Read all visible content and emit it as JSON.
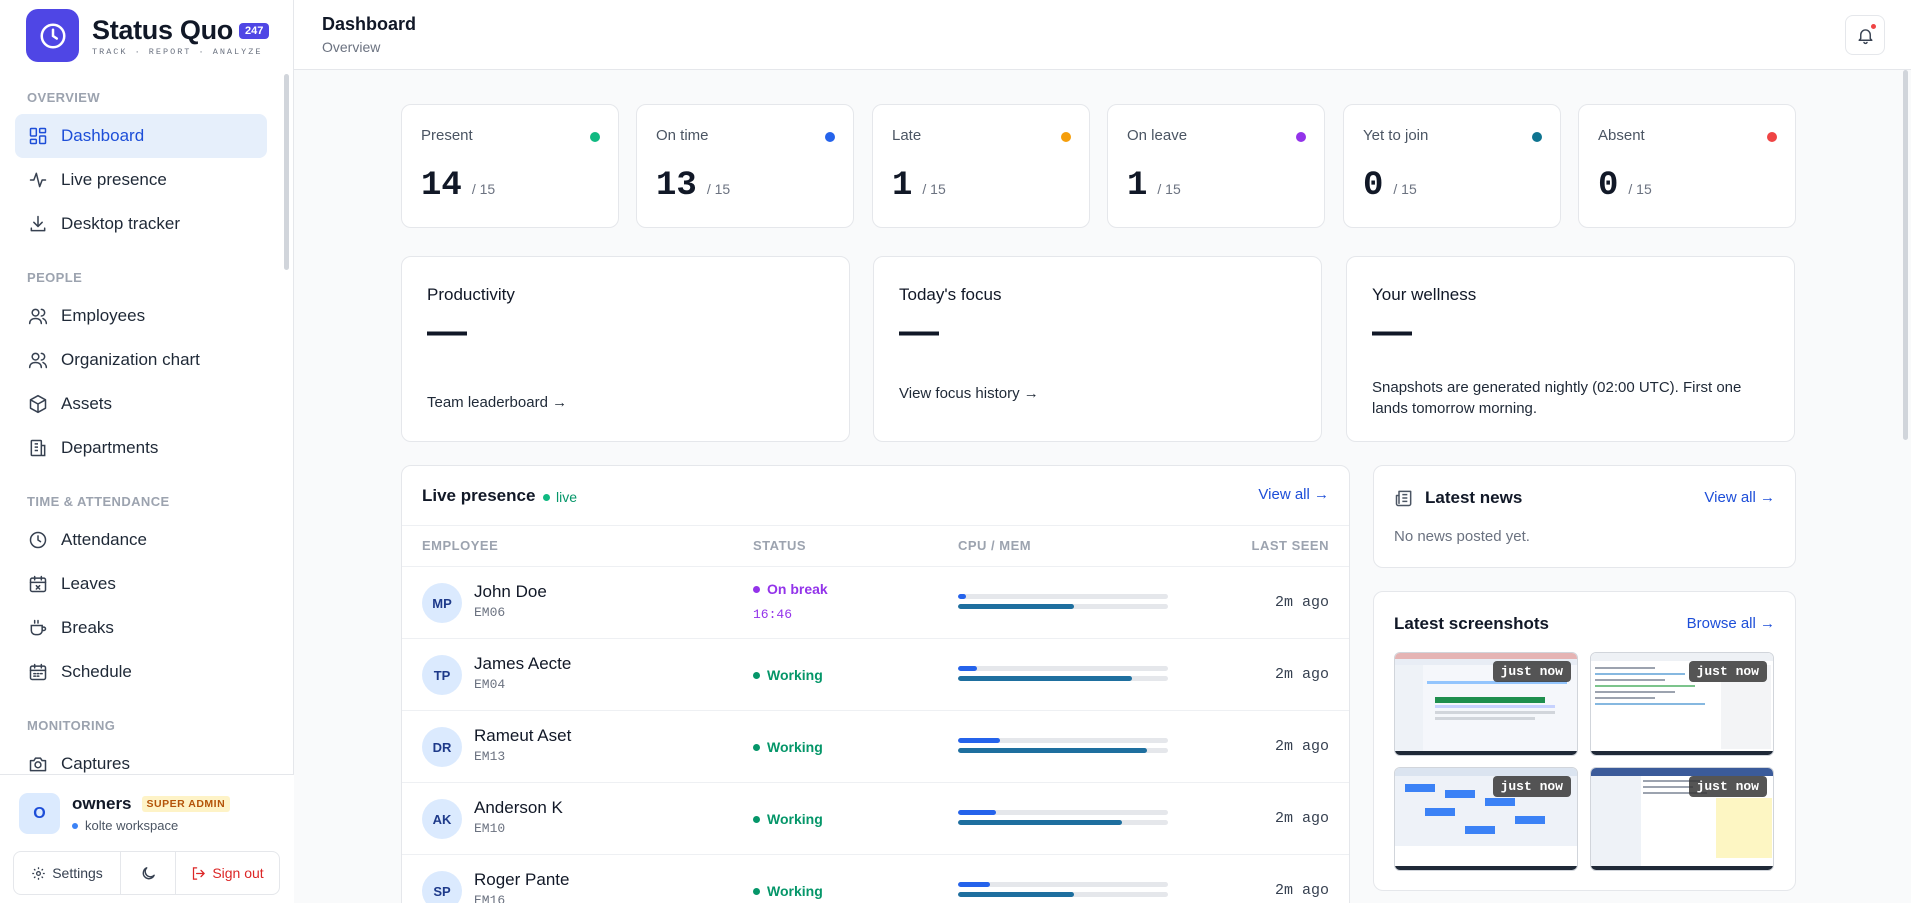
{
  "brand": {
    "name": "Status Quo",
    "badge": "247",
    "tagline": "TRACK · REPORT · ANALYZE"
  },
  "sidebar": {
    "sections": [
      {
        "label": "OVERVIEW",
        "items": [
          {
            "label": "Dashboard",
            "icon": "dashboard-icon",
            "active": true
          },
          {
            "label": "Live presence",
            "icon": "activity-icon"
          },
          {
            "label": "Desktop tracker",
            "icon": "download-icon"
          }
        ]
      },
      {
        "label": "PEOPLE",
        "items": [
          {
            "label": "Employees",
            "icon": "users-icon"
          },
          {
            "label": "Organization chart",
            "icon": "org-chart-icon"
          },
          {
            "label": "Assets",
            "icon": "box-icon"
          },
          {
            "label": "Departments",
            "icon": "building-icon"
          }
        ]
      },
      {
        "label": "TIME & ATTENDANCE",
        "items": [
          {
            "label": "Attendance",
            "icon": "clock-icon"
          },
          {
            "label": "Leaves",
            "icon": "calendar-x-icon"
          },
          {
            "label": "Breaks",
            "icon": "coffee-icon"
          },
          {
            "label": "Schedule",
            "icon": "calendar-icon"
          }
        ]
      },
      {
        "label": "MONITORING",
        "items": [
          {
            "label": "Captures",
            "icon": "camera-icon"
          }
        ]
      }
    ]
  },
  "user": {
    "initial": "O",
    "name": "owners",
    "role": "SUPER ADMIN",
    "workspace": "kolte workspace",
    "settings_label": "Settings",
    "signout_label": "Sign out"
  },
  "header": {
    "title": "Dashboard",
    "subtitle": "Overview"
  },
  "stats": [
    {
      "label": "Present",
      "value": "14",
      "total": "/ 15",
      "color": "#10b981"
    },
    {
      "label": "On time",
      "value": "13",
      "total": "/ 15",
      "color": "#2563eb"
    },
    {
      "label": "Late",
      "value": "1",
      "total": "/ 15",
      "color": "#f59e0b"
    },
    {
      "label": "On leave",
      "value": "1",
      "total": "/ 15",
      "color": "#9333ea"
    },
    {
      "label": "Yet to join",
      "value": "0",
      "total": "/ 15",
      "color": "#0e7490"
    },
    {
      "label": "Absent",
      "value": "0",
      "total": "/ 15",
      "color": "#ef4444"
    }
  ],
  "productivity": {
    "title": "Productivity",
    "value": "—",
    "link": "Team leaderboard →"
  },
  "focus": {
    "title": "Today's focus",
    "value": "—",
    "link": "View focus history →"
  },
  "wellness": {
    "title": "Your wellness",
    "value": "—",
    "note": "Snapshots are generated nightly (02:00 UTC). First one lands tomorrow morning."
  },
  "live": {
    "title": "Live presence",
    "badge": "live",
    "view_all": "View all →",
    "columns": {
      "employee": "EMPLOYEE",
      "status": "STATUS",
      "cpu_mem": "CPU / MEM",
      "last_seen": "LAST SEEN"
    },
    "rows": [
      {
        "initials": "MP",
        "name": "John Doe",
        "code": "EM06",
        "status": "On break",
        "status_color": "#9333ea",
        "break_time": "16:46",
        "cpu": 0.04,
        "mem": 0.55,
        "last_seen": "2m ago"
      },
      {
        "initials": "TP",
        "name": "James Aecte",
        "code": "EM04",
        "status": "Working",
        "status_color": "#059669",
        "cpu": 0.09,
        "mem": 0.83,
        "last_seen": "2m ago"
      },
      {
        "initials": "DR",
        "name": "Rameut Aset",
        "code": "EM13",
        "status": "Working",
        "status_color": "#059669",
        "cpu": 0.2,
        "mem": 0.9,
        "last_seen": "2m ago"
      },
      {
        "initials": "AK",
        "name": "Anderson K",
        "code": "EM10",
        "status": "Working",
        "status_color": "#059669",
        "cpu": 0.18,
        "mem": 0.78,
        "last_seen": "2m ago"
      },
      {
        "initials": "SP",
        "name": "Roger Pante",
        "code": "EM16",
        "status": "Working",
        "status_color": "#059669",
        "cpu": 0.15,
        "mem": 0.55,
        "last_seen": "2m ago"
      }
    ]
  },
  "news": {
    "title": "Latest news",
    "view_all": "View all →",
    "empty": "No news posted yet."
  },
  "screenshots": {
    "title": "Latest screenshots",
    "browse_all": "Browse all →",
    "items": [
      {
        "badge": "just now"
      },
      {
        "badge": "just now"
      },
      {
        "badge": "just now"
      },
      {
        "badge": "just now"
      }
    ]
  },
  "colors": {
    "accent": "#4f46e5",
    "link": "#1d4ed8",
    "cpu_bar": "#2563eb",
    "mem_bar": "#1e6f9f"
  }
}
